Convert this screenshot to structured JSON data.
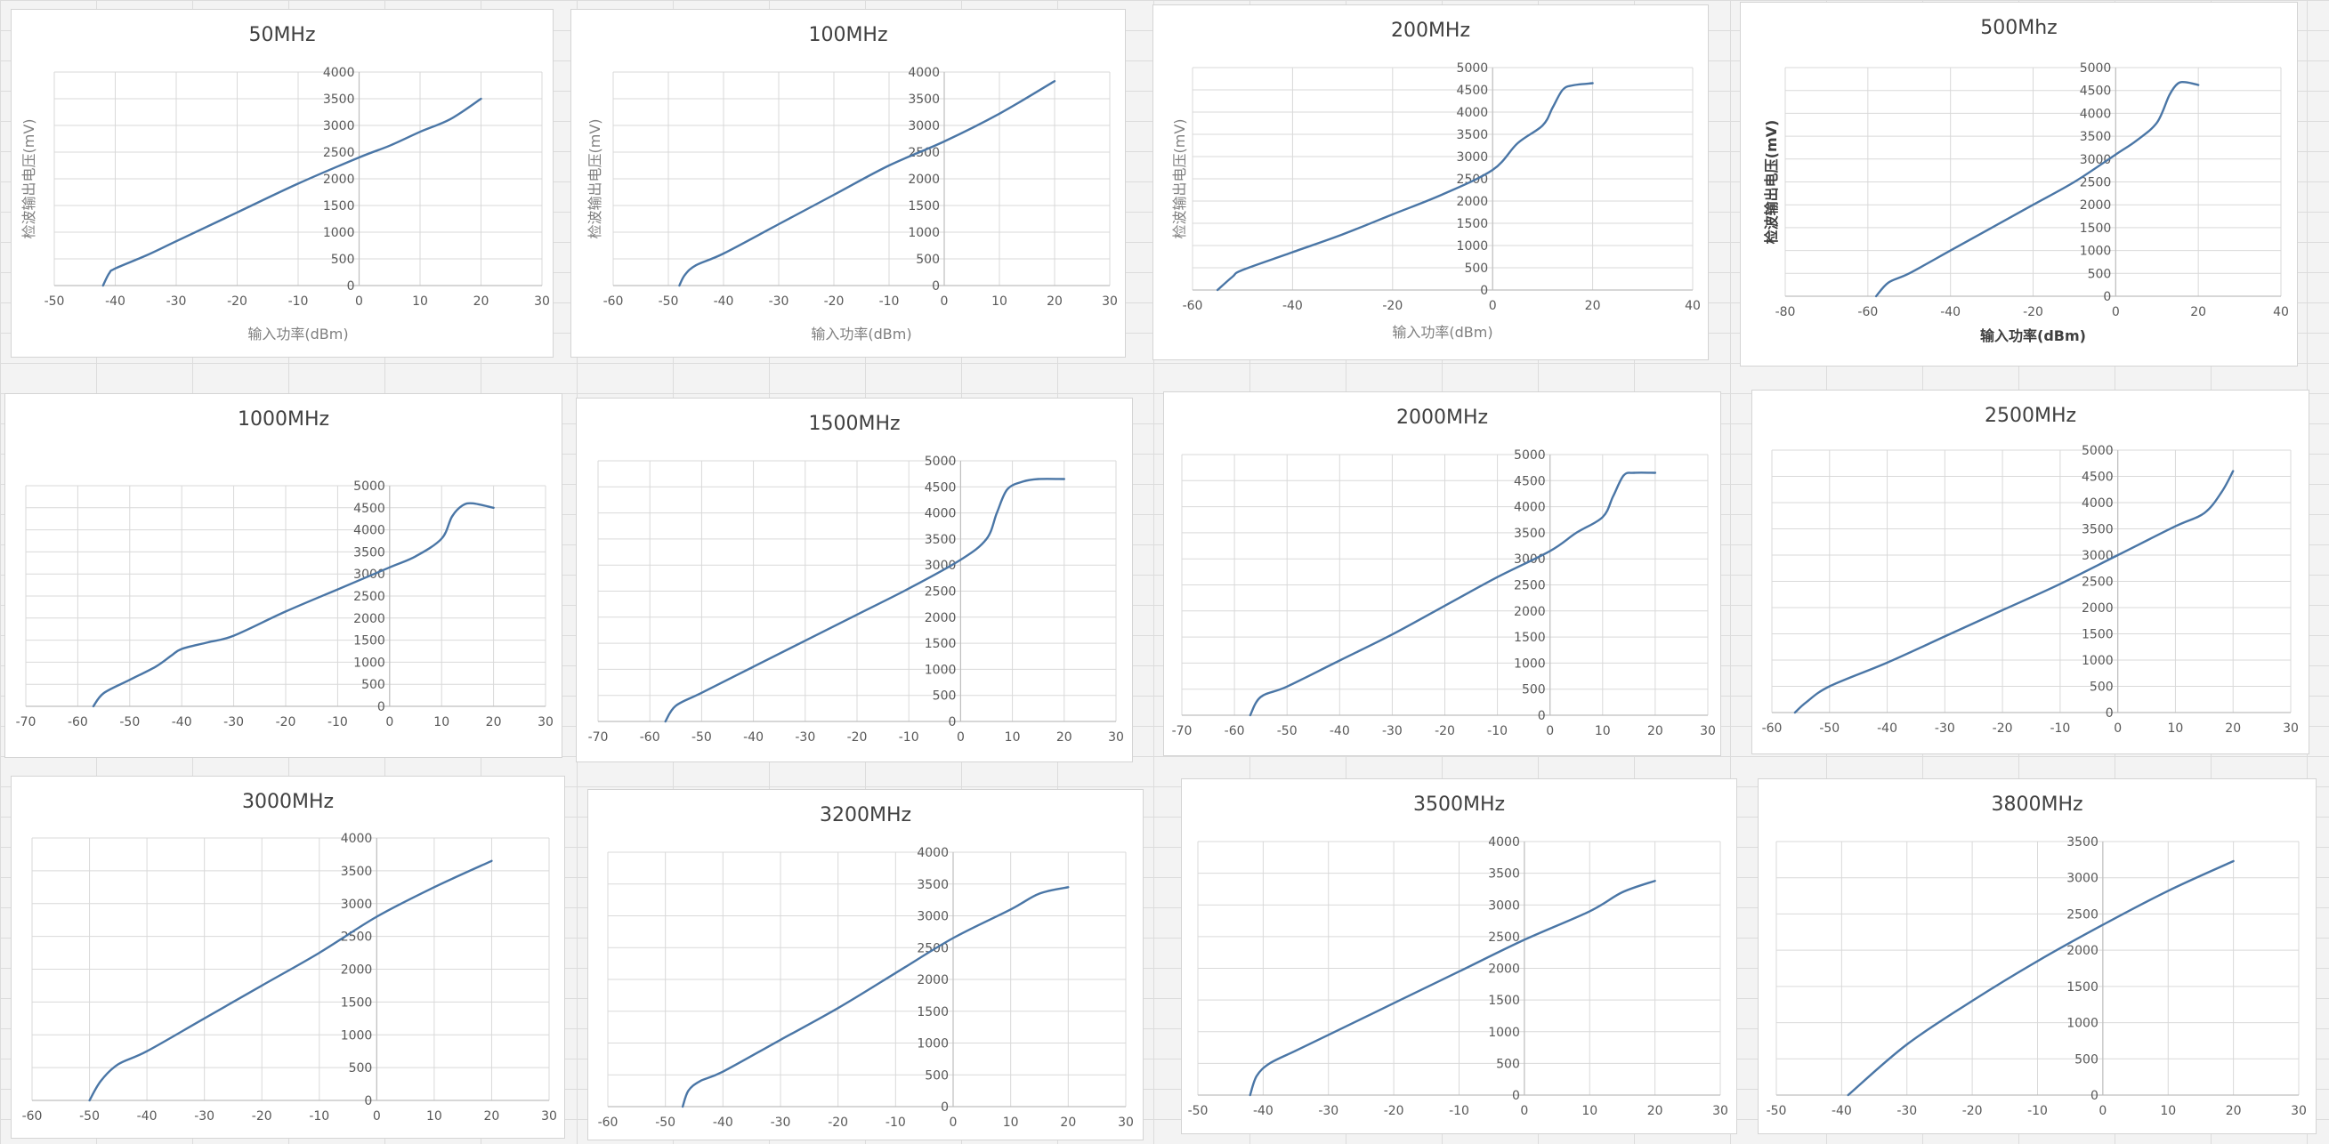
{
  "chart_data": [
    {
      "type": "line",
      "title": "50MHz",
      "xlabel": "输入功率(dBm)",
      "ylabel": "检波输出电压(mV)",
      "xlim": [
        -50,
        30
      ],
      "xticks": [
        -50,
        -40,
        -30,
        -20,
        -10,
        0,
        10,
        20,
        30
      ],
      "ylim": [
        0,
        4000
      ],
      "yticks": [
        0,
        500,
        1000,
        1500,
        2000,
        2500,
        3000,
        3500,
        4000
      ],
      "grid": true,
      "legend": "none",
      "color": "#4a76a6",
      "series": [
        {
          "x": [
            -42,
            -41,
            -40,
            -35,
            -30,
            -20,
            -10,
            0,
            5,
            10,
            15,
            20
          ],
          "y": [
            0,
            230,
            320,
            560,
            830,
            1370,
            1910,
            2400,
            2620,
            2880,
            3120,
            3500
          ]
        }
      ]
    },
    {
      "type": "line",
      "title": "100MHz",
      "xlabel": "输入功率(dBm)",
      "ylabel": "检波输出电压(mV)",
      "xlim": [
        -60,
        30
      ],
      "xticks": [
        -60,
        -50,
        -40,
        -30,
        -20,
        -10,
        0,
        10,
        20,
        30
      ],
      "ylim": [
        0,
        4000
      ],
      "yticks": [
        0,
        500,
        1000,
        1500,
        2000,
        2500,
        3000,
        3500,
        4000
      ],
      "grid": true,
      "legend": "none",
      "color": "#4a76a6",
      "series": [
        {
          "x": [
            -48,
            -47,
            -45,
            -40,
            -30,
            -20,
            -10,
            0,
            10,
            20
          ],
          "y": [
            0,
            200,
            380,
            600,
            1150,
            1700,
            2250,
            2700,
            3220,
            3830
          ]
        }
      ]
    },
    {
      "type": "line",
      "title": "200MHz",
      "xlabel": "输入功率(dBm)",
      "ylabel": "检波输出电压(mV)",
      "xlim": [
        -60,
        40
      ],
      "xticks": [
        -60,
        -40,
        -20,
        0,
        20,
        40
      ],
      "ylim": [
        0,
        5000
      ],
      "yticks": [
        0,
        500,
        1000,
        1500,
        2000,
        2500,
        3000,
        3500,
        4000,
        4500,
        5000
      ],
      "grid": true,
      "legend": "none",
      "color": "#4a76a6",
      "series": [
        {
          "x": [
            -55,
            -52,
            -50,
            -40,
            -30,
            -20,
            -10,
            0,
            5,
            10,
            12,
            14,
            16,
            20
          ],
          "y": [
            0,
            300,
            450,
            850,
            1250,
            1700,
            2150,
            2700,
            3300,
            3700,
            4100,
            4500,
            4600,
            4650
          ]
        }
      ]
    },
    {
      "type": "line",
      "title": "500Mhz",
      "xlabel": "输入功率(dBm)",
      "ylabel": "检波输出电压(mV)",
      "xlim": [
        -80,
        40
      ],
      "xticks": [
        -80,
        -60,
        -40,
        -20,
        0,
        20,
        40
      ],
      "ylim": [
        0,
        5000
      ],
      "yticks": [
        0,
        500,
        1000,
        1500,
        2000,
        2500,
        3000,
        3500,
        4000,
        4500,
        5000
      ],
      "grid": true,
      "legend": "none",
      "color": "#4a76a6",
      "series": [
        {
          "x": [
            -58,
            -55,
            -50,
            -40,
            -30,
            -20,
            -10,
            0,
            5,
            10,
            13,
            15,
            17,
            20
          ],
          "y": [
            0,
            300,
            500,
            1000,
            1500,
            2000,
            2500,
            3100,
            3400,
            3800,
            4400,
            4650,
            4680,
            4620
          ]
        }
      ]
    },
    {
      "type": "line",
      "title": "1000MHz",
      "xlabel": "",
      "ylabel": "",
      "xlim": [
        -70,
        30
      ],
      "xticks": [
        -70,
        -60,
        -50,
        -40,
        -30,
        -20,
        -10,
        0,
        10,
        20,
        30
      ],
      "ylim": [
        0,
        5000
      ],
      "yticks": [
        0,
        500,
        1000,
        1500,
        2000,
        2500,
        3000,
        3500,
        4000,
        4500,
        5000
      ],
      "grid": true,
      "legend": "none",
      "color": "#4a76a6",
      "series": [
        {
          "x": [
            -57,
            -55,
            -50,
            -45,
            -42,
            -40,
            -35,
            -30,
            -20,
            -10,
            0,
            5,
            10,
            12,
            14,
            16,
            20
          ],
          "y": [
            0,
            300,
            600,
            900,
            1150,
            1300,
            1450,
            1600,
            2150,
            2650,
            3150,
            3400,
            3800,
            4300,
            4550,
            4600,
            4500
          ]
        }
      ]
    },
    {
      "type": "line",
      "title": "1500MHz",
      "xlabel": "",
      "ylabel": "",
      "xlim": [
        -70,
        30
      ],
      "xticks": [
        -70,
        -60,
        -50,
        -40,
        -30,
        -20,
        -10,
        0,
        10,
        20,
        30
      ],
      "ylim": [
        0,
        5000
      ],
      "yticks": [
        0,
        500,
        1000,
        1500,
        2000,
        2500,
        3000,
        3500,
        4000,
        4500,
        5000
      ],
      "grid": true,
      "legend": "none",
      "color": "#4a76a6",
      "series": [
        {
          "x": [
            -57,
            -55,
            -50,
            -40,
            -30,
            -20,
            -10,
            0,
            5,
            7,
            9,
            12,
            15,
            20
          ],
          "y": [
            0,
            300,
            550,
            1050,
            1550,
            2050,
            2550,
            3100,
            3500,
            4000,
            4450,
            4600,
            4650,
            4650
          ]
        }
      ]
    },
    {
      "type": "line",
      "title": "2000MHz",
      "xlabel": "",
      "ylabel": "",
      "xlim": [
        -70,
        30
      ],
      "xticks": [
        -70,
        -60,
        -50,
        -40,
        -30,
        -20,
        -10,
        0,
        10,
        20,
        30
      ],
      "ylim": [
        0,
        5000
      ],
      "yticks": [
        0,
        500,
        1000,
        1500,
        2000,
        2500,
        3000,
        3500,
        4000,
        4500,
        5000
      ],
      "grid": true,
      "legend": "none",
      "color": "#4a76a6",
      "series": [
        {
          "x": [
            -57,
            -55,
            -50,
            -40,
            -30,
            -20,
            -10,
            0,
            5,
            10,
            12,
            14,
            16,
            20
          ],
          "y": [
            0,
            350,
            550,
            1050,
            1550,
            2100,
            2650,
            3150,
            3500,
            3800,
            4200,
            4600,
            4650,
            4650
          ]
        }
      ]
    },
    {
      "type": "line",
      "title": "2500MHz",
      "xlabel": "",
      "ylabel": "",
      "xlim": [
        -60,
        30
      ],
      "xticks": [
        -60,
        -50,
        -40,
        -30,
        -20,
        -10,
        0,
        10,
        20,
        30
      ],
      "ylim": [
        0,
        5000
      ],
      "yticks": [
        0,
        500,
        1000,
        1500,
        2000,
        2500,
        3000,
        3500,
        4000,
        4500,
        5000
      ],
      "grid": true,
      "legend": "none",
      "color": "#4a76a6",
      "series": [
        {
          "x": [
            -56,
            -54,
            -50,
            -40,
            -30,
            -20,
            -10,
            0,
            10,
            15,
            18,
            20
          ],
          "y": [
            0,
            200,
            500,
            950,
            1450,
            1950,
            2450,
            3000,
            3550,
            3800,
            4200,
            4600
          ]
        }
      ]
    },
    {
      "type": "line",
      "title": "3000MHz",
      "xlabel": "",
      "ylabel": "",
      "xlim": [
        -60,
        30
      ],
      "xticks": [
        -60,
        -50,
        -40,
        -30,
        -20,
        -10,
        0,
        10,
        20,
        30
      ],
      "ylim": [
        0,
        4000
      ],
      "yticks": [
        0,
        500,
        1000,
        1500,
        2000,
        2500,
        3000,
        3500,
        4000
      ],
      "grid": true,
      "legend": "none",
      "color": "#4a76a6",
      "series": [
        {
          "x": [
            -50,
            -48,
            -45,
            -40,
            -30,
            -20,
            -10,
            0,
            10,
            20
          ],
          "y": [
            0,
            300,
            550,
            750,
            1250,
            1750,
            2250,
            2800,
            3250,
            3650
          ]
        }
      ]
    },
    {
      "type": "line",
      "title": "3200MHz",
      "xlabel": "",
      "ylabel": "",
      "xlim": [
        -60,
        30
      ],
      "xticks": [
        -60,
        -50,
        -40,
        -30,
        -20,
        -10,
        0,
        10,
        20,
        30
      ],
      "ylim": [
        0,
        4000
      ],
      "yticks": [
        0,
        500,
        1000,
        1500,
        2000,
        2500,
        3000,
        3500,
        4000
      ],
      "grid": true,
      "legend": "none",
      "color": "#4a76a6",
      "series": [
        {
          "x": [
            -47,
            -46,
            -44,
            -40,
            -30,
            -20,
            -10,
            0,
            10,
            15,
            20
          ],
          "y": [
            0,
            250,
            400,
            550,
            1050,
            1550,
            2100,
            2650,
            3100,
            3350,
            3450
          ]
        }
      ]
    },
    {
      "type": "line",
      "title": "3500MHz",
      "xlabel": "",
      "ylabel": "",
      "xlim": [
        -50,
        30
      ],
      "xticks": [
        -50,
        -40,
        -30,
        -20,
        -10,
        0,
        10,
        20,
        30
      ],
      "ylim": [
        0,
        4000
      ],
      "yticks": [
        0,
        500,
        1000,
        1500,
        2000,
        2500,
        3000,
        3500,
        4000
      ],
      "grid": true,
      "legend": "none",
      "color": "#4a76a6",
      "series": [
        {
          "x": [
            -42,
            -41,
            -39,
            -35,
            -30,
            -20,
            -10,
            0,
            10,
            15,
            20
          ],
          "y": [
            0,
            300,
            500,
            700,
            950,
            1450,
            1950,
            2450,
            2900,
            3200,
            3380
          ]
        }
      ]
    },
    {
      "type": "line",
      "title": "3800MHz",
      "xlabel": "",
      "ylabel": "",
      "xlim": [
        -50,
        30
      ],
      "xticks": [
        -50,
        -40,
        -30,
        -20,
        -10,
        0,
        10,
        20,
        30
      ],
      "ylim": [
        0,
        3500
      ],
      "yticks": [
        0,
        500,
        1000,
        1500,
        2000,
        2500,
        3000,
        3500
      ],
      "grid": true,
      "legend": "none",
      "color": "#4a76a6",
      "series": [
        {
          "x": [
            -39,
            -30,
            -20,
            -10,
            0,
            10,
            20
          ],
          "y": [
            0,
            700,
            1300,
            1850,
            2350,
            2820,
            3230
          ]
        }
      ]
    }
  ]
}
